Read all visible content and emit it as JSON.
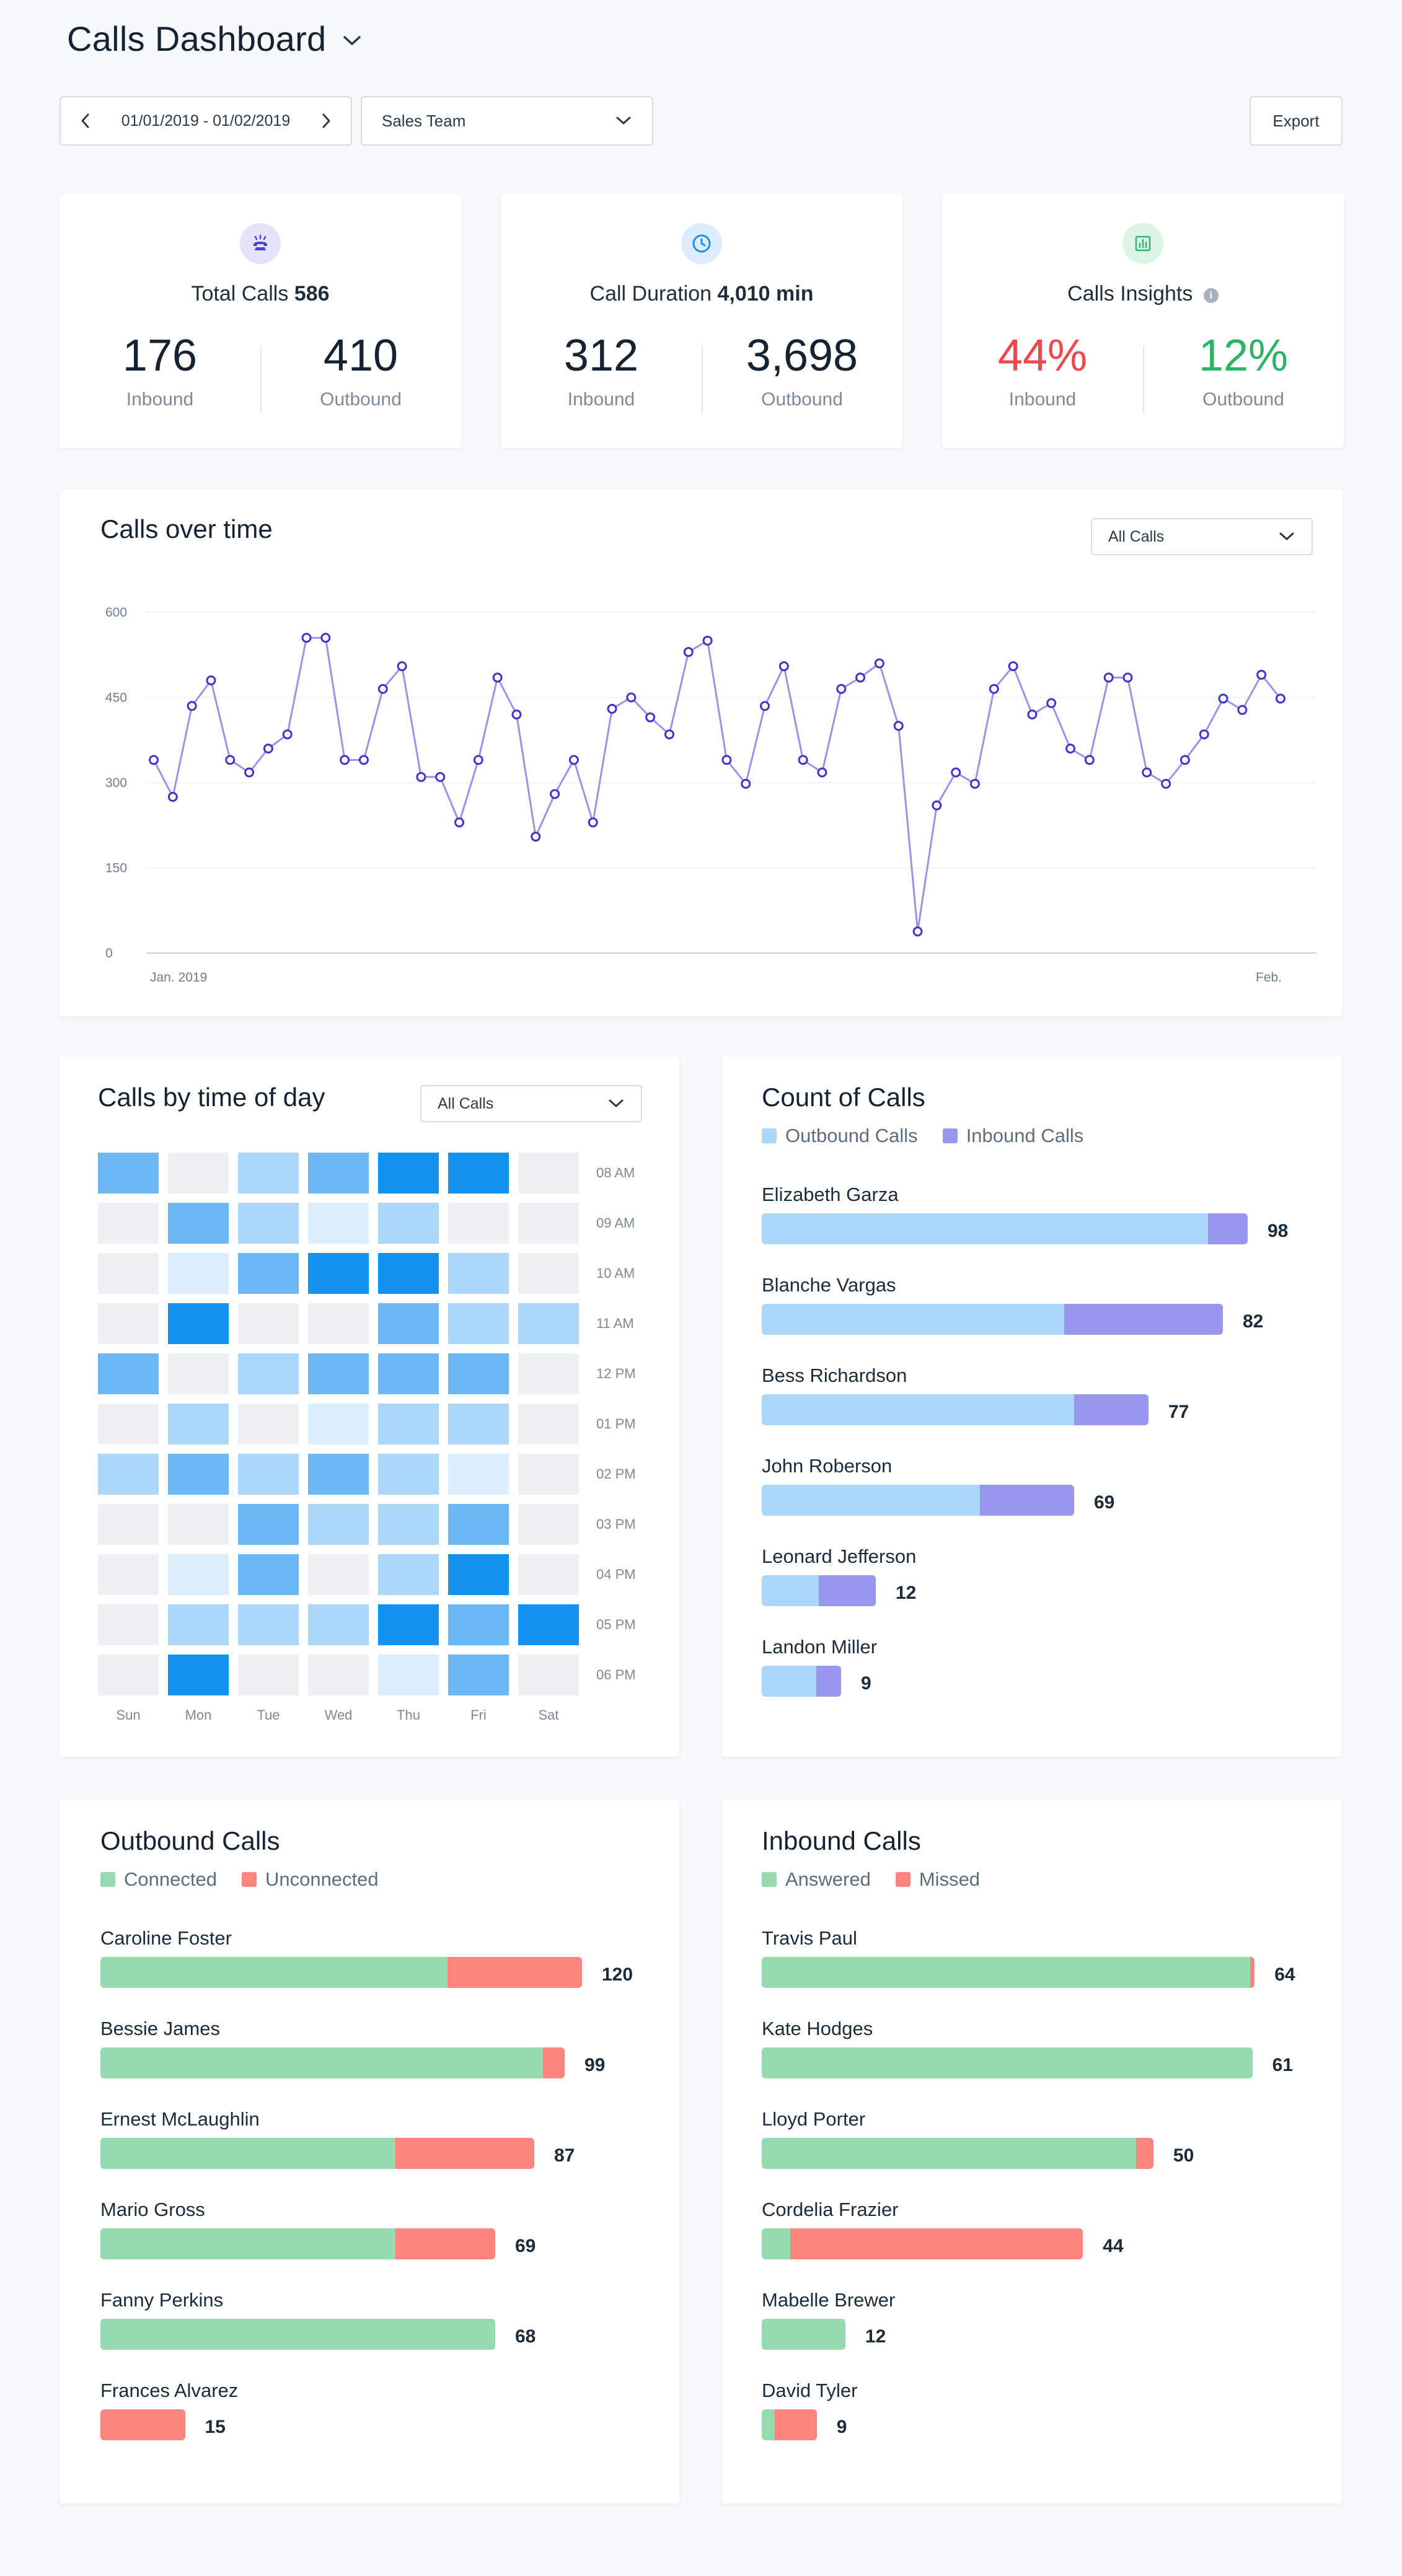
{
  "header": {
    "title": "Calls Dashboard"
  },
  "toolbar": {
    "date_range": "01/01/2019 - 01/02/2019",
    "team": "Sales Team",
    "export_label": "Export"
  },
  "stats": [
    {
      "title": "Total Calls",
      "value": "586",
      "icon": "phone-ringing-icon",
      "icon_bg": "#e5e3fb",
      "icon_color": "#4a3fd0",
      "left": {
        "num": "176",
        "label": "Inbound",
        "color": "#152232"
      },
      "right": {
        "num": "410",
        "label": "Outbound",
        "color": "#152232"
      }
    },
    {
      "title": "Call Duration",
      "value": "4,010 min",
      "icon": "clock-icon",
      "icon_bg": "#dcecfb",
      "icon_color": "#1d8de6",
      "left": {
        "num": "312",
        "label": "Inbound",
        "color": "#152232"
      },
      "right": {
        "num": "3,698",
        "label": "Outbound",
        "color": "#152232"
      }
    },
    {
      "title": "Calls Insights",
      "value": "",
      "icon": "bar-chart-icon",
      "icon_bg": "#dcf3e6",
      "icon_color": "#2fb36b",
      "left": {
        "num": "44%",
        "label": "Inbound",
        "color": "#f0474b"
      },
      "right": {
        "num": "12%",
        "label": "Outbound",
        "color": "#2bb366"
      }
    }
  ],
  "calls_over_time": {
    "title": "Calls over time",
    "filter": "All Calls",
    "chart_data": {
      "type": "line",
      "y_ticks": [
        "600",
        "450",
        "300",
        "150",
        "0"
      ],
      "ylim": [
        0,
        600
      ],
      "x_labels": [
        "Jan. 2019",
        "Feb."
      ],
      "values": [
        340,
        275,
        435,
        480,
        340,
        318,
        360,
        385,
        555,
        555,
        340,
        340,
        465,
        505,
        310,
        310,
        230,
        340,
        485,
        420,
        205,
        280,
        340,
        230,
        430,
        450,
        415,
        385,
        530,
        550,
        340,
        298,
        435,
        505,
        340,
        318,
        465,
        485,
        510,
        400,
        38,
        260,
        318,
        298,
        465,
        505,
        420,
        440,
        360,
        340,
        485,
        485,
        318,
        298,
        340,
        385,
        448,
        428,
        490,
        448
      ],
      "line_color": "#9b93e8",
      "point_color": "#3f36c9"
    }
  },
  "time_of_day": {
    "title": "Calls by time of day",
    "filter": "All Calls",
    "days": [
      "Sun",
      "Mon",
      "Tue",
      "Wed",
      "Thu",
      "Fri",
      "Sat"
    ],
    "times": [
      "08 AM",
      "09 AM",
      "10 AM",
      "11 AM",
      "12 PM",
      "01 PM",
      "02 PM",
      "03 PM",
      "04 PM",
      "05 PM",
      "06 PM"
    ],
    "palette": [
      "#eef0f3",
      "#dbeefc",
      "#aad7fa",
      "#6cb8f4",
      "#1393ef"
    ],
    "levels": [
      [
        3,
        0,
        2,
        3,
        4,
        4,
        0
      ],
      [
        0,
        3,
        2,
        1,
        2,
        0,
        0
      ],
      [
        0,
        1,
        3,
        4,
        4,
        2,
        0
      ],
      [
        0,
        4,
        0,
        0,
        3,
        2,
        2
      ],
      [
        3,
        0,
        2,
        3,
        3,
        3,
        0
      ],
      [
        0,
        2,
        0,
        1,
        2,
        2,
        0
      ],
      [
        2,
        3,
        2,
        3,
        2,
        1,
        0
      ],
      [
        0,
        0,
        3,
        2,
        2,
        3,
        0
      ],
      [
        0,
        1,
        3,
        0,
        2,
        4,
        0
      ],
      [
        0,
        2,
        2,
        2,
        4,
        3,
        4
      ],
      [
        0,
        4,
        0,
        0,
        1,
        3,
        0
      ]
    ]
  },
  "count_of_calls": {
    "title": "Count of Calls",
    "legend": [
      {
        "label": "Outbound Calls",
        "color": "#aad7fa"
      },
      {
        "label": "Inbound Calls",
        "color": "#9997ed"
      }
    ],
    "rows": [
      {
        "name": "Elizabeth Garza",
        "value": "98",
        "a": 90,
        "b": 8
      },
      {
        "name": "Blanche Vargas",
        "value": "82",
        "a": 61,
        "b": 32
      },
      {
        "name": "Bess Richardson",
        "value": "77",
        "a": 63,
        "b": 15
      },
      {
        "name": "John Roberson",
        "value": "69",
        "a": 44,
        "b": 19
      },
      {
        "name": "Leonard Jefferson",
        "value": "12",
        "a": 11.5,
        "b": 11.5
      },
      {
        "name": "Landon Miller",
        "value": "9",
        "a": 11,
        "b": 5
      }
    ]
  },
  "outbound_calls": {
    "title": "Outbound Calls",
    "legend": [
      {
        "label": "Connected",
        "color": "#95dbb0"
      },
      {
        "label": "Unconnected",
        "color": "#fc857d"
      }
    ],
    "rows": [
      {
        "name": "Caroline Foster",
        "value": "120",
        "a": 80,
        "b": 31
      },
      {
        "name": "Bessie James",
        "value": "99",
        "a": 102,
        "b": 5
      },
      {
        "name": "Ernest McLaughlin",
        "value": "87",
        "a": 68,
        "b": 32
      },
      {
        "name": "Mario Gross",
        "value": "69",
        "a": 68,
        "b": 23
      },
      {
        "name": "Fanny Perkins",
        "value": "68",
        "a": 91,
        "b": 0
      },
      {
        "name": "Frances Alvarez",
        "value": "15",
        "a": 0,
        "b": 19.5
      }
    ]
  },
  "inbound_calls": {
    "title": "Inbound Calls",
    "legend": [
      {
        "label": "Answered",
        "color": "#95dbb0"
      },
      {
        "label": "Missed",
        "color": "#fc857d"
      }
    ],
    "rows": [
      {
        "name": "Travis Paul",
        "value": "64",
        "a": 111,
        "b": 1
      },
      {
        "name": "Kate Hodges",
        "value": "61",
        "a": 111.5,
        "b": 0
      },
      {
        "name": "Lloyd Porter",
        "value": "50",
        "a": 85,
        "b": 4
      },
      {
        "name": "Cordelia Frazier",
        "value": "44",
        "a": 6.5,
        "b": 66.5
      },
      {
        "name": "Mabelle Brewer",
        "value": "12",
        "a": 19,
        "b": 0
      },
      {
        "name": "David Tyler",
        "value": "9",
        "a": 3,
        "b": 9.5
      }
    ]
  }
}
